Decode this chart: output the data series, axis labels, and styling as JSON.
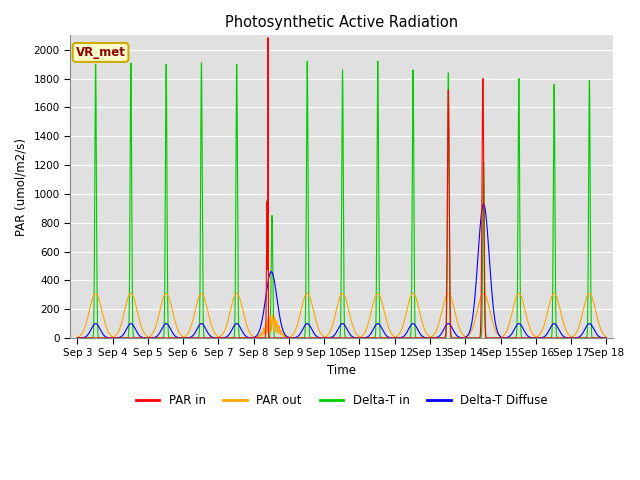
{
  "title": "Photosynthetic Active Radiation",
  "ylabel": "PAR (umol/m2/s)",
  "xlabel": "Time",
  "ylim": [
    0,
    2100
  ],
  "yticks": [
    0,
    200,
    400,
    600,
    800,
    1000,
    1200,
    1400,
    1600,
    1800,
    2000
  ],
  "x_tick_labels": [
    "Sep 3",
    "Sep 4",
    "Sep 5",
    "Sep 6",
    "Sep 7",
    "Sep 8",
    "Sep 9",
    "Sep 10",
    "Sep 11",
    "Sep 12",
    "Sep 13",
    "Sep 14",
    "Sep 15",
    "Sep 16",
    "Sep 17",
    "Sep 18"
  ],
  "bg_color": "#e0e0e0",
  "fig_bg": "#ffffff",
  "legend_items": [
    "PAR in",
    "PAR out",
    "Delta-T in",
    "Delta-T Diffuse"
  ],
  "legend_colors": [
    "#ff0000",
    "#ffa500",
    "#00cc00",
    "#0000ff"
  ],
  "vr_met_box_color": "#ffffcc",
  "vr_met_text_color": "#8b0000",
  "vr_met_edge_color": "#ccaa00",
  "colors": {
    "par_in": "#ff0000",
    "par_out": "#ffa500",
    "delta_t_in": "#00cc00",
    "delta_t_diffuse": "#0000ff"
  },
  "n_days": 15,
  "pts_per_day": 480
}
